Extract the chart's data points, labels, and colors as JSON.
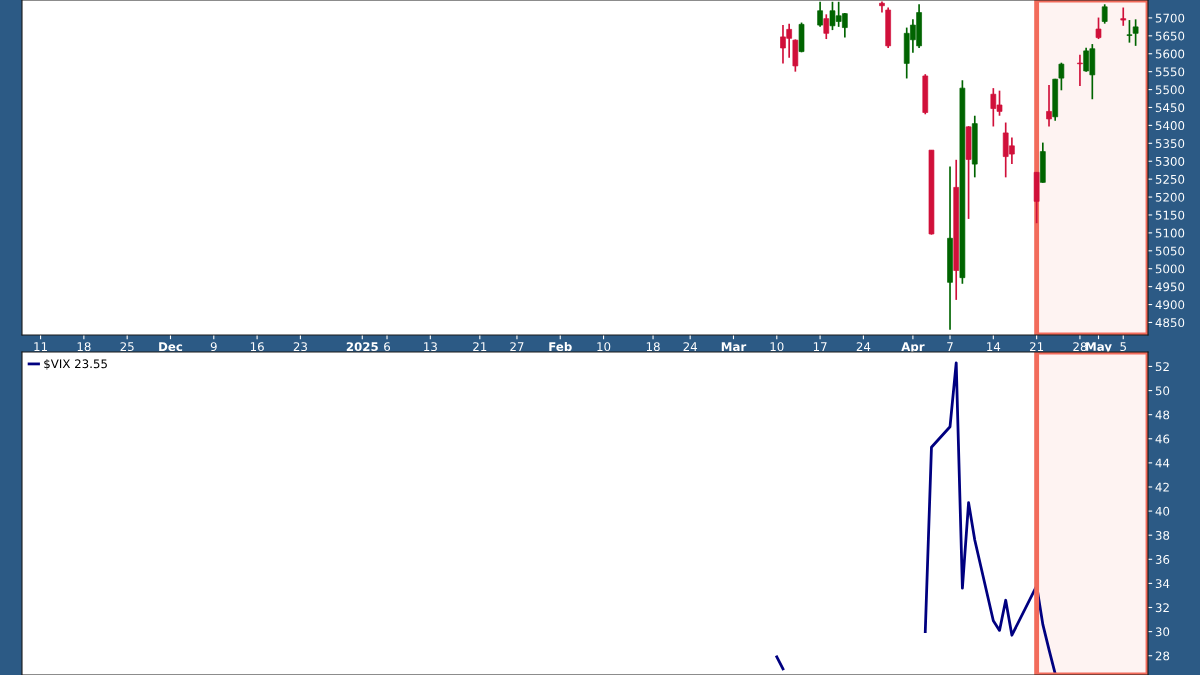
{
  "chart_data": [
    {
      "type": "candlestick",
      "x": [
        "2025-03-11",
        "2025-03-12",
        "2025-03-13",
        "2025-03-14",
        "2025-03-17",
        "2025-03-18",
        "2025-03-19",
        "2025-03-20",
        "2025-03-21",
        "2025-03-27",
        "2025-03-28",
        "2025-03-31",
        "2025-04-01",
        "2025-04-02",
        "2025-04-03",
        "2025-04-04",
        "2025-04-07",
        "2025-04-08",
        "2025-04-09",
        "2025-04-10",
        "2025-04-11",
        "2025-04-14",
        "2025-04-15",
        "2025-04-16",
        "2025-04-17",
        "2025-04-21",
        "2025-04-22",
        "2025-04-23",
        "2025-04-24",
        "2025-04-25",
        "2025-04-28",
        "2025-04-29",
        "2025-04-30",
        "2025-05-01",
        "2025-05-02",
        "2025-05-05",
        "2025-05-06",
        "2025-05-07"
      ],
      "ohlc": [
        [
          5647,
          5680,
          5573,
          5616
        ],
        [
          5668,
          5684,
          5589,
          5643
        ],
        [
          5638,
          5640,
          5550,
          5566
        ],
        [
          5606,
          5687,
          5604,
          5682
        ],
        [
          5680,
          5745,
          5675,
          5720
        ],
        [
          5698,
          5710,
          5641,
          5657
        ],
        [
          5678,
          5745,
          5666,
          5720
        ],
        [
          5690,
          5745,
          5675,
          5706
        ],
        [
          5673,
          5714,
          5645,
          5712
        ],
        [
          5741,
          5746,
          5715,
          5734
        ],
        [
          5722,
          5729,
          5616,
          5622
        ],
        [
          5573,
          5673,
          5531,
          5657
        ],
        [
          5639,
          5696,
          5603,
          5680
        ],
        [
          5622,
          5738,
          5616,
          5715
        ],
        [
          5538,
          5543,
          5431,
          5436
        ],
        [
          5331,
          5331,
          5095,
          5097
        ],
        [
          4962,
          5285,
          4830,
          5085
        ],
        [
          5227,
          5304,
          4913,
          4995
        ],
        [
          4975,
          5526,
          4958,
          5504
        ],
        [
          5396,
          5398,
          5139,
          5305
        ],
        [
          5292,
          5427,
          5255,
          5405
        ],
        [
          5487,
          5504,
          5397,
          5447
        ],
        [
          5457,
          5497,
          5427,
          5439
        ],
        [
          5379,
          5408,
          5255,
          5313
        ],
        [
          5343,
          5366,
          5292,
          5320
        ],
        [
          5269,
          5270,
          5127,
          5188
        ],
        [
          5241,
          5352,
          5240,
          5327
        ],
        [
          5439,
          5513,
          5397,
          5418
        ],
        [
          5424,
          5530,
          5413,
          5529
        ],
        [
          5532,
          5575,
          5498,
          5571
        ],
        [
          5574,
          5597,
          5510,
          5572
        ],
        [
          5552,
          5617,
          5550,
          5608
        ],
        [
          5541,
          5627,
          5473,
          5614
        ],
        [
          5669,
          5701,
          5641,
          5645
        ],
        [
          5690,
          5738,
          5684,
          5731
        ],
        [
          5698,
          5729,
          5678,
          5694
        ],
        [
          5651,
          5694,
          5631,
          5653
        ],
        [
          5657,
          5696,
          5622,
          5675
        ]
      ],
      "colors": [
        "#d0103a",
        "#d0103a",
        "#d0103a",
        "#006400",
        "#006400",
        "#d0103a",
        "#006400",
        "#006400",
        "#006400",
        "#d0103a",
        "#d0103a",
        "#006400",
        "#006400",
        "#006400",
        "#d0103a",
        "#d0103a",
        "#006400",
        "#d0103a",
        "#006400",
        "#d0103a",
        "#006400",
        "#d0103a",
        "#d0103a",
        "#d0103a",
        "#d0103a",
        "#d0103a",
        "#006400",
        "#d0103a",
        "#006400",
        "#006400",
        "#d0103a",
        "#006400",
        "#006400",
        "#d0103a",
        "#006400",
        "#d0103a",
        "#006400",
        "#006400"
      ],
      "xlim": [
        "2024-11-08",
        "2025-05-09"
      ],
      "ylim": [
        4815,
        5750
      ],
      "yticks": [
        4850,
        4900,
        4950,
        5000,
        5050,
        5100,
        5150,
        5200,
        5250,
        5300,
        5350,
        5400,
        5450,
        5500,
        5550,
        5600,
        5650,
        5700
      ],
      "xticks": [
        {
          "value": "2024-11-11",
          "label": "11"
        },
        {
          "value": "2024-11-18",
          "label": "18"
        },
        {
          "value": "2024-11-25",
          "label": "25"
        },
        {
          "value": "2024-12-02",
          "label": "Dec"
        },
        {
          "value": "2024-12-09",
          "label": "9"
        },
        {
          "value": "2024-12-16",
          "label": "16"
        },
        {
          "value": "2024-12-23",
          "label": "23"
        },
        {
          "value": "2025-01-02",
          "label": "2025"
        },
        {
          "value": "2025-01-06",
          "label": "6"
        },
        {
          "value": "2025-01-13",
          "label": "13"
        },
        {
          "value": "2025-01-21",
          "label": "21"
        },
        {
          "value": "2025-01-27",
          "label": "27"
        },
        {
          "value": "2025-02-03",
          "label": "Feb"
        },
        {
          "value": "2025-02-10",
          "label": "10"
        },
        {
          "value": "2025-02-18",
          "label": "18"
        },
        {
          "value": "2025-02-24",
          "label": "24"
        },
        {
          "value": "2025-03-03",
          "label": "Mar"
        },
        {
          "value": "2025-03-10",
          "label": "10"
        },
        {
          "value": "2025-03-17",
          "label": "17"
        },
        {
          "value": "2025-03-24",
          "label": "24"
        },
        {
          "value": "2025-04-01",
          "label": "Apr"
        },
        {
          "value": "2025-04-07",
          "label": "7"
        },
        {
          "value": "2025-04-14",
          "label": "14"
        },
        {
          "value": "2025-04-21",
          "label": "21"
        },
        {
          "value": "2025-04-28",
          "label": "28"
        },
        {
          "value": "2025-05-01",
          "label": "May"
        },
        {
          "value": "2025-05-05",
          "label": "5"
        }
      ],
      "bands": [
        {
          "axis": "x",
          "from": "2025-04-21",
          "to": "2025-05-09",
          "color": "#f26b5b"
        }
      ],
      "grid": false
    },
    {
      "type": "line",
      "series": [
        {
          "name": "$VIX 23.55",
          "color": "#000080",
          "x": [
            "2025-03-10",
            "2025-03-11",
            "2025-04-03",
            "2025-04-04",
            "2025-04-07",
            "2025-04-08",
            "2025-04-09",
            "2025-04-10",
            "2025-04-11",
            "2025-04-14",
            "2025-04-15",
            "2025-04-16",
            "2025-04-17",
            "2025-04-21",
            "2025-04-22",
            "2025-04-23",
            "2025-04-24"
          ],
          "values": [
            27.9,
            26.9,
            30.0,
            45.3,
            47.0,
            52.3,
            33.6,
            40.7,
            37.6,
            30.9,
            30.1,
            32.6,
            29.7,
            33.8,
            30.6,
            28.5,
            26.5
          ]
        }
      ],
      "xlim": [
        "2024-11-08",
        "2025-05-09"
      ],
      "ylim": [
        26.4,
        53.2
      ],
      "yticks": [
        28,
        30,
        32,
        34,
        36,
        38,
        40,
        42,
        44,
        46,
        48,
        50,
        52
      ],
      "bands": [
        {
          "axis": "x",
          "from": "2025-04-21",
          "to": "2025-05-09",
          "color": "#f26b5b"
        }
      ],
      "tick_labels": "y",
      "legend": "top left",
      "grid": false
    }
  ]
}
